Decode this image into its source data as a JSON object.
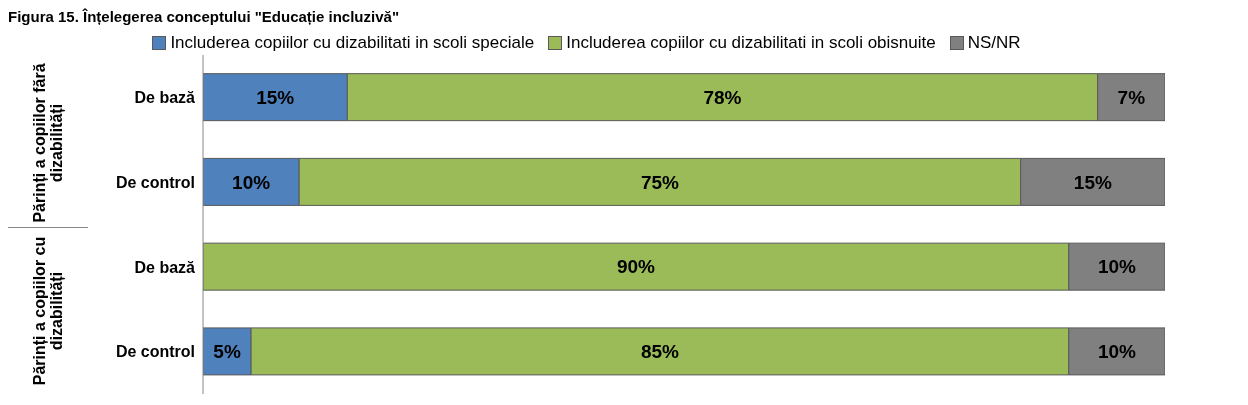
{
  "chart_data": {
    "type": "bar",
    "orientation": "horizontal",
    "stacked": true,
    "title": "Figura 15. Înțelegerea conceptului \"Educație incluzivă\"",
    "categories": [
      "De bază",
      "De control",
      "De bază",
      "De control"
    ],
    "annotations": [
      "Părinți a copiilor fără dizabilități",
      "Părinți a copiilor cu dizabilități"
    ],
    "series": [
      {
        "name": "Includerea copiilor cu dizabilitati in scoli speciale",
        "color": "#4f81bd",
        "values": [
          15,
          10,
          null,
          5
        ],
        "value_labels": [
          "15%",
          "10%",
          null,
          "5%"
        ]
      },
      {
        "name": "Includerea copiilor cu dizabilitati in scoli obisnuite",
        "color": "#9bbb59",
        "values": [
          78,
          75,
          90,
          85
        ],
        "value_labels": [
          "78%",
          "75%",
          "90%",
          "85%"
        ]
      },
      {
        "name": "NS/NR",
        "color": "#808080",
        "values": [
          7,
          15,
          10,
          10
        ],
        "value_labels": [
          "7%",
          "15%",
          "10%",
          "10%"
        ]
      }
    ],
    "xlim": [
      0,
      100
    ],
    "tick_labels": "y",
    "legend": "top"
  }
}
